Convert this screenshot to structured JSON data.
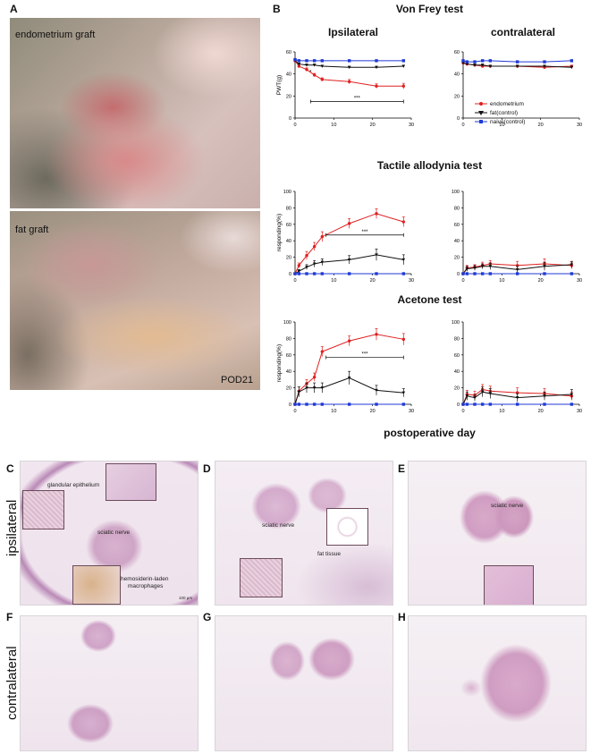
{
  "panels": {
    "A": "A",
    "B": "B",
    "C": "C",
    "D": "D",
    "E": "E",
    "F": "F",
    "G": "G",
    "H": "H"
  },
  "panel_a": {
    "top_label": "endometrium graft",
    "bottom_label": "fat graft",
    "corner_label": "POD21"
  },
  "panel_b": {
    "main_title": "Von Frey test",
    "col_left": "Ipsilateral",
    "col_right": "contralateral",
    "row2_title": "Tactile allodynia test",
    "row3_title": "Acetone test",
    "xlabel": "postoperative day",
    "sig_marker": "***",
    "star_marker": "*"
  },
  "legend": {
    "items": [
      {
        "label": "endometrium",
        "color": "#e02020"
      },
      {
        "label": "fat(control)",
        "color": "#111111"
      },
      {
        "label": "naive(control)",
        "color": "#1f3ad6"
      }
    ]
  },
  "histology": {
    "side_top": "ipsilateral",
    "side_bottom": "contralateral",
    "c_glandular": "glandular epithelium",
    "c_sciatic": "sciatic nerve",
    "c_hemo1": "hemosiderin-laden",
    "c_hemo2": "macrophages",
    "c_scale": "100 μm",
    "d_sciatic": "sciatic nerve",
    "d_fat": "fat tissue",
    "e_sciatic": "sciatic nerve"
  },
  "chart_data": [
    {
      "type": "line",
      "title": "Ipsilateral",
      "ylabel": "PWT(g)",
      "x": [
        0,
        1,
        3,
        5,
        7,
        14,
        21,
        28
      ],
      "xlim": [
        0,
        30
      ],
      "ylim": [
        0,
        60
      ],
      "yticks": [
        0,
        20,
        40,
        60
      ],
      "xticks": [
        0,
        10,
        20,
        30
      ],
      "series": [
        {
          "name": "endometrium",
          "color": "#e02020",
          "values": [
            52,
            47,
            44,
            39,
            35,
            33,
            29,
            29
          ],
          "err": [
            1,
            1,
            1.5,
            1.5,
            1.5,
            2,
            2,
            2.5
          ]
        },
        {
          "name": "fat(control)",
          "color": "#111111",
          "values": [
            52,
            49,
            48,
            48,
            47,
            46,
            46,
            47
          ],
          "err": [
            1,
            1,
            1,
            1,
            1,
            1,
            1,
            1
          ]
        },
        {
          "name": "naive(control)",
          "color": "#1f3ad6",
          "values": [
            53,
            52,
            52,
            52,
            52,
            52,
            52,
            52
          ],
          "err": [
            0.5,
            0.5,
            0.5,
            0.5,
            0.5,
            0.5,
            0.5,
            0.5
          ]
        }
      ],
      "annotations": [
        {
          "text": "***",
          "x_from": 4,
          "x_to": 28,
          "y": 15
        },
        {
          "text": "*",
          "x": 4,
          "y": 40
        }
      ]
    },
    {
      "type": "line",
      "title": "contralateral",
      "ylabel": "",
      "x": [
        0,
        1,
        3,
        5,
        7,
        14,
        21,
        28
      ],
      "xlim": [
        0,
        30
      ],
      "ylim": [
        0,
        60
      ],
      "yticks": [
        0,
        20,
        40,
        60
      ],
      "xticks": [
        0,
        10,
        20,
        30
      ],
      "series": [
        {
          "name": "endometrium",
          "color": "#e02020",
          "values": [
            50,
            49,
            48,
            47,
            47,
            47,
            46,
            47
          ],
          "err": [
            1,
            1,
            1,
            1,
            1,
            1,
            1,
            1
          ]
        },
        {
          "name": "fat(control)",
          "color": "#111111",
          "values": [
            50,
            49,
            48,
            48,
            47,
            47,
            47,
            46
          ],
          "err": [
            1,
            1,
            1,
            1,
            1,
            1,
            1,
            1
          ]
        },
        {
          "name": "naive(control)",
          "color": "#1f3ad6",
          "values": [
            52,
            51,
            51,
            52,
            52,
            51,
            51,
            52
          ],
          "err": [
            0.5,
            0.5,
            0.5,
            0.5,
            0.5,
            0.5,
            0.5,
            0.5
          ]
        }
      ]
    },
    {
      "type": "line",
      "title": "",
      "ylabel": "responding(%)",
      "x": [
        0,
        1,
        3,
        5,
        7,
        14,
        21,
        28
      ],
      "xlim": [
        0,
        30
      ],
      "ylim": [
        0,
        100
      ],
      "yticks": [
        0,
        20,
        40,
        60,
        80,
        100
      ],
      "xticks": [
        0,
        10,
        20,
        30
      ],
      "series": [
        {
          "name": "endometrium",
          "color": "#e02020",
          "values": [
            0,
            10,
            22,
            33,
            45,
            61,
            73,
            63
          ],
          "err": [
            0,
            3,
            5,
            5,
            6,
            6,
            6,
            6
          ]
        },
        {
          "name": "fat(control)",
          "color": "#111111",
          "values": [
            0,
            3,
            8,
            12,
            14,
            17,
            23,
            17
          ],
          "err": [
            0,
            2,
            3,
            4,
            4,
            5,
            7,
            6
          ]
        },
        {
          "name": "naive(control)",
          "color": "#1f3ad6",
          "values": [
            0,
            0,
            0,
            0,
            0,
            0,
            0,
            0
          ],
          "err": [
            0,
            0,
            0,
            0,
            0,
            0,
            0,
            0
          ]
        }
      ],
      "annotations": [
        {
          "text": "***",
          "x_from": 8,
          "x_to": 28,
          "y": 47
        }
      ]
    },
    {
      "type": "line",
      "title": "",
      "ylabel": "",
      "x": [
        0,
        1,
        3,
        5,
        7,
        14,
        21,
        28
      ],
      "xlim": [
        0,
        30
      ],
      "ylim": [
        0,
        100
      ],
      "yticks": [
        0,
        20,
        40,
        60,
        80,
        100
      ],
      "xticks": [
        0,
        10,
        20,
        30
      ],
      "series": [
        {
          "name": "endometrium",
          "color": "#e02020",
          "values": [
            0,
            7,
            8,
            10,
            12,
            10,
            12,
            10
          ],
          "err": [
            0,
            3,
            3,
            4,
            4,
            5,
            6,
            4
          ]
        },
        {
          "name": "fat(control)",
          "color": "#111111",
          "values": [
            0,
            6,
            7,
            9,
            9,
            5,
            9,
            11
          ],
          "err": [
            0,
            3,
            3,
            3,
            4,
            4,
            5,
            4
          ]
        },
        {
          "name": "naive(control)",
          "color": "#1f3ad6",
          "values": [
            0,
            0,
            0,
            0,
            0,
            0,
            0,
            0
          ],
          "err": [
            0,
            0,
            0,
            0,
            0,
            0,
            0,
            0
          ]
        }
      ]
    },
    {
      "type": "line",
      "title": "",
      "ylabel": "responding(%)",
      "x": [
        0,
        1,
        3,
        5,
        7,
        14,
        21,
        28
      ],
      "xlim": [
        0,
        30
      ],
      "ylim": [
        0,
        100
      ],
      "yticks": [
        0,
        20,
        40,
        60,
        80,
        100
      ],
      "xticks": [
        0,
        10,
        20,
        30
      ],
      "series": [
        {
          "name": "endometrium",
          "color": "#e02020",
          "values": [
            0,
            16,
            25,
            33,
            64,
            77,
            85,
            79
          ],
          "err": [
            0,
            5,
            5,
            5,
            6,
            6,
            7,
            7
          ]
        },
        {
          "name": "fat(control)",
          "color": "#111111",
          "values": [
            0,
            15,
            20,
            20,
            20,
            32,
            17,
            14
          ],
          "err": [
            0,
            6,
            6,
            6,
            6,
            8,
            6,
            5
          ]
        },
        {
          "name": "naive(control)",
          "color": "#1f3ad6",
          "values": [
            0,
            0,
            0,
            0,
            0,
            0,
            0,
            0
          ],
          "err": [
            0,
            0,
            0,
            0,
            0,
            0,
            0,
            0
          ]
        }
      ],
      "annotations": [
        {
          "text": "***",
          "x_from": 8,
          "x_to": 28,
          "y": 57
        }
      ]
    },
    {
      "type": "line",
      "title": "",
      "ylabel": "",
      "x": [
        0,
        1,
        3,
        5,
        7,
        14,
        21,
        28
      ],
      "xlim": [
        0,
        30
      ],
      "ylim": [
        0,
        100
      ],
      "yticks": [
        0,
        20,
        40,
        60,
        80,
        100
      ],
      "xticks": [
        0,
        10,
        20,
        30
      ],
      "series": [
        {
          "name": "endometrium",
          "color": "#e02020",
          "values": [
            0,
            12,
            11,
            18,
            16,
            14,
            13,
            10
          ],
          "err": [
            0,
            5,
            5,
            6,
            6,
            6,
            6,
            5
          ]
        },
        {
          "name": "fat(control)",
          "color": "#111111",
          "values": [
            0,
            10,
            8,
            15,
            13,
            8,
            10,
            12
          ],
          "err": [
            0,
            5,
            4,
            6,
            6,
            5,
            5,
            6
          ]
        },
        {
          "name": "naive(control)",
          "color": "#1f3ad6",
          "values": [
            0,
            0,
            0,
            0,
            0,
            0,
            0,
            0
          ],
          "err": [
            0,
            0,
            0,
            0,
            0,
            0,
            0,
            0
          ]
        }
      ]
    }
  ]
}
